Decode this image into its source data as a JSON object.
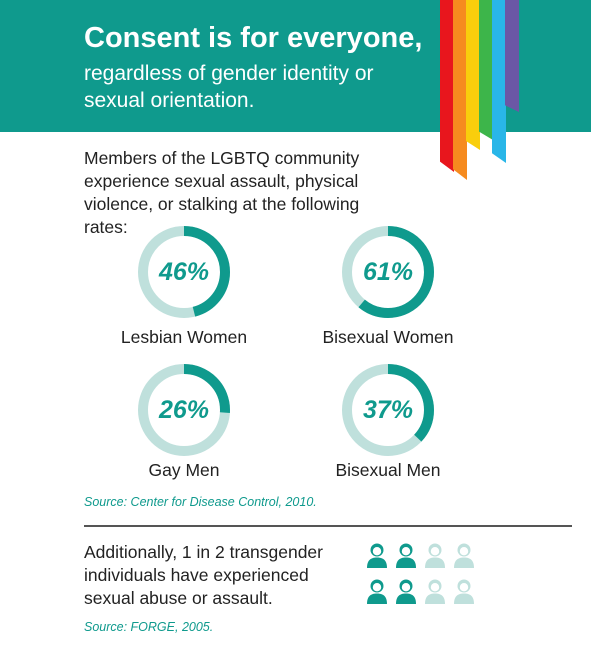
{
  "header": {
    "title": "Consent is for everyone,",
    "subtitle": "regardless of gender identity or sexual orientation.",
    "rainbow_colors": [
      "#e8161d",
      "#f68b1f",
      "#f9ce0c",
      "#3db54a",
      "#29b6e8",
      "#6b57a5"
    ]
  },
  "intro": "Members of the LGBTQ community experience sexual assault, physical violence, or stalking at the following rates:",
  "colors": {
    "teal": "#0f9a8d",
    "ring_track": "#bfe0dc"
  },
  "chart_data": {
    "type": "donut",
    "categories": [
      "Lesbian Women",
      "Bisexual Women",
      "Gay Men",
      "Bisexual Men"
    ],
    "values": [
      46,
      61,
      26,
      37
    ],
    "labels": [
      "46%",
      "61%",
      "26%",
      "37%"
    ],
    "unit": "%",
    "max": 100
  },
  "source1": "Source: Center for Disease Control, 2010.",
  "transgender": {
    "text": "Additionally, 1 in 2 transgender individuals have experienced sexual abuse or assault.",
    "ratio": 0.5,
    "icons_total": 8,
    "icons_highlighted": 4
  },
  "source2": "Source: FORGE, 2005."
}
